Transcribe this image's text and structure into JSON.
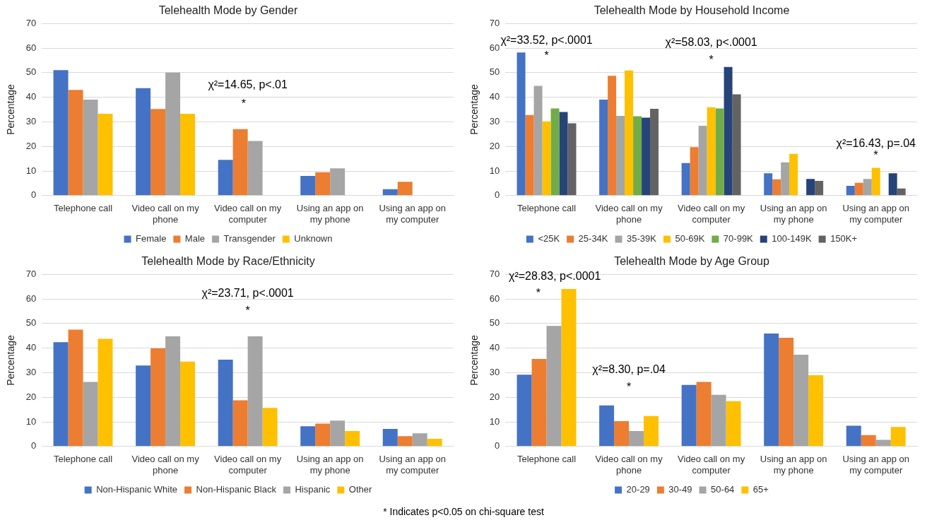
{
  "chart_data": [
    {
      "type": "bar",
      "title": "Telehealth Mode by Gender",
      "ylabel": "Percentage",
      "categories": [
        "Telephone call",
        "Video call on my phone",
        "Video call on my computer",
        "Using an app on my phone",
        "Using an app on my computer"
      ],
      "series": [
        {
          "name": "Female",
          "color": "#4472c4",
          "values": [
            51,
            43.7,
            14.5,
            8,
            2.6
          ]
        },
        {
          "name": "Male",
          "color": "#ed7d31",
          "values": [
            43,
            35.2,
            27,
            9.5,
            5.6
          ]
        },
        {
          "name": "Transgender",
          "color": "#a5a5a5",
          "values": [
            39,
            50,
            22.2,
            11.1,
            0
          ]
        },
        {
          "name": "Unknown",
          "color": "#ffc000",
          "values": [
            33.3,
            33.3,
            0,
            0,
            0
          ]
        }
      ],
      "ylim": [
        0,
        70
      ],
      "yticks": [
        0,
        10,
        20,
        30,
        40,
        50,
        60,
        70
      ],
      "grid": "y",
      "legend": "bottom",
      "annotations": [
        "χ²=14.65, p<.01",
        "*"
      ]
    },
    {
      "type": "bar",
      "title": "Telehealth Mode by Household Income",
      "ylabel": "Percentage",
      "categories": [
        "Telephone call",
        "Video call on my phone",
        "Video call on my computer",
        "Using an app on my phone",
        "Using an app on my computer"
      ],
      "series": [
        {
          "name": "<25K",
          "color": "#4472c4",
          "values": [
            58.2,
            39,
            13.2,
            9.1,
            4
          ]
        },
        {
          "name": "25-34K",
          "color": "#ed7d31",
          "values": [
            32.8,
            48.7,
            19.7,
            6.6,
            5.2
          ]
        },
        {
          "name": "35-39K",
          "color": "#a5a5a5",
          "values": [
            44.6,
            32.4,
            28.4,
            13.5,
            6.8
          ]
        },
        {
          "name": "50-69K",
          "color": "#ffc000",
          "values": [
            30.2,
            50.9,
            35.9,
            17,
            11.3
          ]
        },
        {
          "name": "70-99K",
          "color": "#70ad47",
          "values": [
            35.4,
            32.3,
            35.4,
            0,
            0
          ]
        },
        {
          "name": "100-149K",
          "color": "#264478",
          "values": [
            34,
            31.7,
            52.3,
            6.8,
            9.1
          ]
        },
        {
          "name": "150K+",
          "color": "#636363",
          "values": [
            29.4,
            35.3,
            41.2,
            6,
            2.9
          ]
        }
      ],
      "ylim": [
        0,
        70
      ],
      "yticks": [
        0,
        10,
        20,
        30,
        40,
        50,
        60,
        70
      ],
      "grid": "y",
      "legend": "bottom",
      "annotations": [
        "χ²=33.52, p<.0001",
        "*",
        "χ²=58.03, p<.0001",
        "*",
        "χ²=16.43, p=.04",
        "*"
      ]
    },
    {
      "type": "bar",
      "title": "Telehealth Mode by Race/Ethnicity",
      "ylabel": "Percentage",
      "categories": [
        "Telephone call",
        "Video call on my phone",
        "Video call on my computer",
        "Using an app on my phone",
        "Using an app on my computer"
      ],
      "series": [
        {
          "name": "Non-Hispanic White",
          "color": "#4472c4",
          "values": [
            42.4,
            32.9,
            35.3,
            8.2,
            7.1
          ]
        },
        {
          "name": "Non-Hispanic Black",
          "color": "#ed7d31",
          "values": [
            47.5,
            39.9,
            18.8,
            9.3,
            4.2
          ]
        },
        {
          "name": "Hispanic",
          "color": "#a5a5a5",
          "values": [
            26.2,
            44.8,
            44.8,
            10.5,
            5.3
          ]
        },
        {
          "name": "Other",
          "color": "#ffc000",
          "values": [
            43.8,
            34.5,
            15.7,
            6.3,
            3.1
          ]
        }
      ],
      "ylim": [
        0,
        70
      ],
      "yticks": [
        0,
        10,
        20,
        30,
        40,
        50,
        60,
        70
      ],
      "grid": "y",
      "legend": "bottom",
      "annotations": [
        "χ²=23.71, p<.0001",
        "*"
      ]
    },
    {
      "type": "bar",
      "title": "Telehealth Mode by Age Group",
      "ylabel": "Percentage",
      "categories": [
        "Telephone call",
        "Video call on my phone",
        "Video call on my computer",
        "Using an app on my phone",
        "Using an app on my computer"
      ],
      "series": [
        {
          "name": "20-29",
          "color": "#4472c4",
          "values": [
            29.2,
            16.7,
            25,
            45.9,
            8.4
          ]
        },
        {
          "name": "30-49",
          "color": "#ed7d31",
          "values": [
            35.6,
            10.3,
            26.2,
            44.2,
            4.6
          ]
        },
        {
          "name": "50-64",
          "color": "#a5a5a5",
          "values": [
            49,
            6.3,
            21,
            37.3,
            2.7
          ]
        },
        {
          "name": "65+",
          "color": "#ffc000",
          "values": [
            64,
            12.4,
            18.4,
            29,
            7.9
          ]
        }
      ],
      "ylim": [
        0,
        70
      ],
      "yticks": [
        0,
        10,
        20,
        30,
        40,
        50,
        60,
        70
      ],
      "grid": "y",
      "legend": "bottom",
      "annotations": [
        "χ²=28.83, p<.0001",
        "*",
        "χ²=8.30, p=.04",
        "*",
        "* Indicates p<0.05 on chi-square test"
      ]
    }
  ]
}
